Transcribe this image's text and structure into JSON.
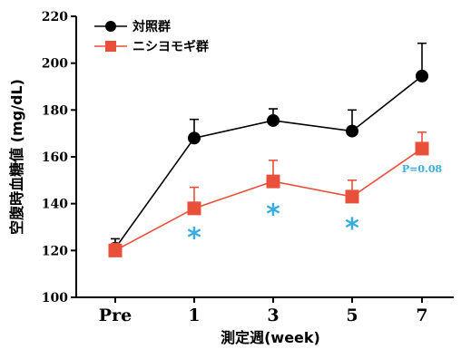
{
  "chart_data": {
    "type": "line",
    "xlabel": "測定週(week)",
    "ylabel": "空腹時血糖値 (mg/dL)",
    "categories": [
      "Pre",
      "1",
      "3",
      "5",
      "7"
    ],
    "ylim": [
      100,
      220
    ],
    "yticks": [
      "100",
      "120",
      "140",
      "160",
      "180",
      "200",
      "220"
    ],
    "grid": false,
    "legend_position": "top-left",
    "series": [
      {
        "name": "対照群",
        "color": "#000000",
        "marker": "circle",
        "values": [
          121,
          168,
          175.5,
          171,
          194.5
        ],
        "error_plus": [
          4,
          8,
          5,
          9,
          14
        ]
      },
      {
        "name": "ニシヨモギ群",
        "color": "#e8503a",
        "marker": "square",
        "values": [
          120,
          138,
          149.5,
          143,
          163.5
        ],
        "error_plus": [
          3,
          9,
          9,
          7,
          7
        ]
      }
    ],
    "annotations": [
      {
        "text": "*",
        "category_index": 1,
        "y": 127,
        "color": "#3aace0"
      },
      {
        "text": "*",
        "category_index": 2,
        "y": 137,
        "color": "#3aace0"
      },
      {
        "text": "*",
        "category_index": 3,
        "y": 131,
        "color": "#3aace0"
      },
      {
        "text": "P=0.08",
        "category_index": 4,
        "y": 155,
        "color": "#3aace0"
      }
    ]
  }
}
